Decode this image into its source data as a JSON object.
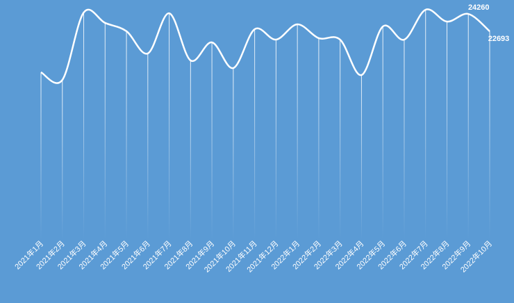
{
  "chart_data": {
    "type": "line",
    "categories": [
      "2021年1月",
      "2021年2月",
      "2021年3月",
      "2021年4月",
      "2021年5月",
      "2021年6月",
      "2021年7月",
      "2021年8月",
      "2021年9月",
      "2021年10月",
      "2021年11月",
      "2021年12月",
      "2022年1月",
      "2022年2月",
      "2022年3月",
      "2022年4月",
      "2022年5月",
      "2022年6月",
      "2022年7月",
      "2022年8月",
      "2022年9月",
      "2022年10月"
    ],
    "values": [
      18990,
      18300,
      24390,
      23450,
      22700,
      20690,
      24320,
      20060,
      21690,
      19370,
      22880,
      21940,
      23320,
      22070,
      21940,
      18740,
      23130,
      21940,
      24640,
      23570,
      24260,
      22693
    ],
    "color": "#ffffff"
  }
}
